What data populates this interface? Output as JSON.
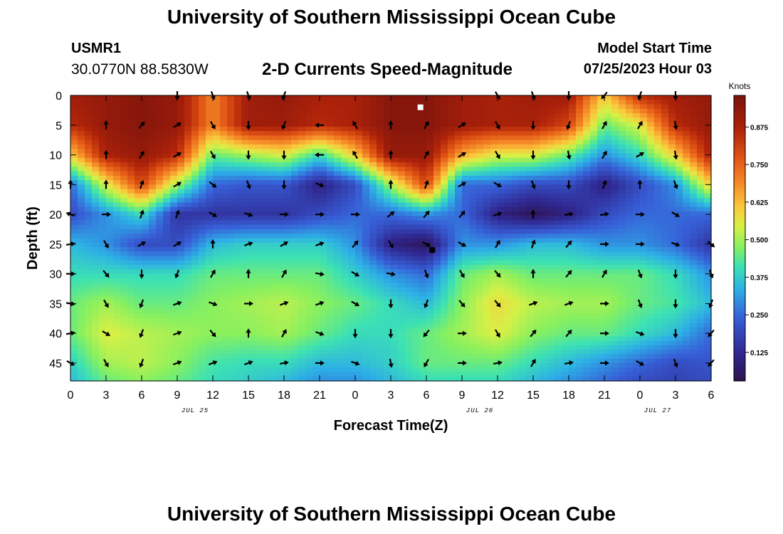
{
  "header": {
    "title": "University of Southern Mississippi Ocean Cube",
    "station_id": "USMR1",
    "coordinates": "30.0770N  88.5830W",
    "subtitle": "2-D Currents Speed-Magnitude",
    "model_start_label": "Model Start Time",
    "model_start_value": "07/25/2023 Hour 03"
  },
  "footer": {
    "title": "University of Southern Mississippi Ocean Cube"
  },
  "chart_data": {
    "type": "heatmap",
    "title": "2-D Currents Speed-Magnitude",
    "xlabel": "Forecast Time(Z)",
    "ylabel": "Depth (ft)",
    "x_hours": [
      0,
      54
    ],
    "x_tick_labels": [
      "0",
      "3",
      "6",
      "9",
      "12",
      "15",
      "18",
      "21",
      "0",
      "3",
      "6",
      "9",
      "12",
      "15",
      "18",
      "21",
      "0",
      "3",
      "6"
    ],
    "date_labels": [
      {
        "hour": 10.5,
        "label": "JUL 25"
      },
      {
        "hour": 34.5,
        "label": "JUL 26"
      },
      {
        "hour": 49.5,
        "label": "JUL 27"
      }
    ],
    "y_range": [
      0,
      48
    ],
    "y_ticks": [
      0,
      5,
      10,
      15,
      20,
      25,
      30,
      35,
      40,
      45
    ],
    "colorbar": {
      "title": "Knots",
      "range": [
        0.03,
        0.98
      ],
      "tick_labels": [
        "0.875",
        "0.750",
        "0.625",
        "0.500",
        "0.375",
        "0.250",
        "0.125"
      ],
      "tick_values": [
        0.875,
        0.75,
        0.625,
        0.5,
        0.375,
        0.25,
        0.125
      ]
    },
    "speed_field": {
      "hours": [
        0,
        3,
        6,
        9,
        12,
        15,
        18,
        21,
        24,
        27,
        30,
        33,
        36,
        39,
        42,
        45,
        48,
        51,
        54
      ],
      "depths": [
        0,
        5,
        10,
        15,
        20,
        25,
        30,
        35,
        40,
        45,
        48
      ],
      "values": [
        [
          0.9,
          0.92,
          0.95,
          0.92,
          0.7,
          0.9,
          0.92,
          0.88,
          0.88,
          0.95,
          0.95,
          0.9,
          0.88,
          0.9,
          0.9,
          0.6,
          0.85,
          0.9,
          0.92
        ],
        [
          0.85,
          0.92,
          0.95,
          0.92,
          0.7,
          0.9,
          0.9,
          0.85,
          0.88,
          0.95,
          0.95,
          0.9,
          0.88,
          0.88,
          0.8,
          0.45,
          0.55,
          0.85,
          0.92
        ],
        [
          0.6,
          0.88,
          0.92,
          0.85,
          0.45,
          0.5,
          0.55,
          0.4,
          0.6,
          0.92,
          0.92,
          0.65,
          0.55,
          0.55,
          0.45,
          0.3,
          0.4,
          0.6,
          0.88
        ],
        [
          0.25,
          0.55,
          0.8,
          0.5,
          0.25,
          0.22,
          0.22,
          0.1,
          0.2,
          0.5,
          0.8,
          0.25,
          0.25,
          0.2,
          0.2,
          0.1,
          0.2,
          0.3,
          0.6
        ],
        [
          0.2,
          0.3,
          0.4,
          0.15,
          0.15,
          0.15,
          0.15,
          0.2,
          0.25,
          0.25,
          0.3,
          0.25,
          0.1,
          0.05,
          0.1,
          0.2,
          0.25,
          0.25,
          0.25
        ],
        [
          0.35,
          0.3,
          0.2,
          0.2,
          0.35,
          0.38,
          0.38,
          0.38,
          0.3,
          0.1,
          0.05,
          0.3,
          0.3,
          0.35,
          0.35,
          0.3,
          0.3,
          0.25,
          0.15
        ],
        [
          0.4,
          0.4,
          0.4,
          0.4,
          0.45,
          0.45,
          0.45,
          0.45,
          0.38,
          0.3,
          0.25,
          0.45,
          0.5,
          0.45,
          0.45,
          0.45,
          0.45,
          0.4,
          0.3
        ],
        [
          0.45,
          0.5,
          0.45,
          0.45,
          0.48,
          0.5,
          0.52,
          0.48,
          0.45,
          0.4,
          0.35,
          0.48,
          0.58,
          0.52,
          0.5,
          0.5,
          0.45,
          0.42,
          0.35
        ],
        [
          0.45,
          0.55,
          0.52,
          0.5,
          0.48,
          0.48,
          0.5,
          0.45,
          0.4,
          0.4,
          0.45,
          0.5,
          0.55,
          0.48,
          0.45,
          0.45,
          0.4,
          0.35,
          0.25
        ],
        [
          0.38,
          0.5,
          0.52,
          0.48,
          0.42,
          0.4,
          0.4,
          0.35,
          0.35,
          0.38,
          0.45,
          0.45,
          0.45,
          0.4,
          0.35,
          0.3,
          0.25,
          0.2,
          0.22
        ],
        [
          0.35,
          0.45,
          0.48,
          0.45,
          0.4,
          0.38,
          0.35,
          0.3,
          0.3,
          0.35,
          0.4,
          0.4,
          0.4,
          0.35,
          0.3,
          0.25,
          0.2,
          0.18,
          0.2
        ]
      ]
    },
    "vector_field": {
      "hours": [
        0,
        3,
        6,
        9,
        12,
        15,
        18,
        21,
        24,
        27,
        30,
        33,
        36,
        39,
        42,
        45,
        48,
        51,
        54
      ],
      "depths": [
        0,
        5,
        10,
        15,
        20,
        25,
        30,
        35,
        40,
        45
      ],
      "direction_deg": [
        [
          null,
          null,
          null,
          180,
          160,
          160,
          200,
          null,
          null,
          null,
          null,
          null,
          150,
          160,
          180,
          220,
          200,
          180,
          null
        ],
        [
          null,
          0,
          40,
          60,
          150,
          180,
          200,
          270,
          330,
          0,
          30,
          60,
          150,
          180,
          200,
          30,
          30,
          170,
          null
        ],
        [
          null,
          0,
          30,
          60,
          150,
          180,
          180,
          270,
          330,
          0,
          30,
          60,
          150,
          180,
          170,
          30,
          60,
          170,
          null
        ],
        [
          0,
          0,
          20,
          60,
          130,
          160,
          180,
          110,
          null,
          0,
          20,
          60,
          120,
          160,
          180,
          20,
          0,
          160,
          null
        ],
        [
          290,
          90,
          20,
          20,
          120,
          110,
          90,
          90,
          90,
          50,
          40,
          40,
          70,
          0,
          80,
          80,
          90,
          120,
          null
        ],
        [
          80,
          150,
          60,
          60,
          0,
          70,
          60,
          70,
          40,
          150,
          120,
          120,
          30,
          20,
          40,
          90,
          90,
          110,
          130
        ],
        [
          90,
          140,
          180,
          200,
          30,
          0,
          30,
          100,
          120,
          100,
          160,
          150,
          140,
          0,
          40,
          30,
          160,
          180,
          160
        ],
        [
          100,
          150,
          200,
          70,
          110,
          90,
          70,
          70,
          120,
          180,
          200,
          140,
          140,
          70,
          70,
          90,
          160,
          180,
          200
        ],
        [
          80,
          120,
          200,
          70,
          140,
          0,
          30,
          110,
          180,
          180,
          220,
          90,
          150,
          40,
          40,
          90,
          110,
          180,
          220
        ],
        [
          120,
          150,
          200,
          70,
          70,
          70,
          80,
          90,
          110,
          170,
          210,
          90,
          80,
          30,
          80,
          90,
          120,
          160,
          220
        ]
      ]
    },
    "markers": [
      {
        "hour": 29.5,
        "depth": 2,
        "color": "#ffffff"
      },
      {
        "hour": 30.5,
        "depth": 26,
        "color": "#000000"
      }
    ]
  }
}
